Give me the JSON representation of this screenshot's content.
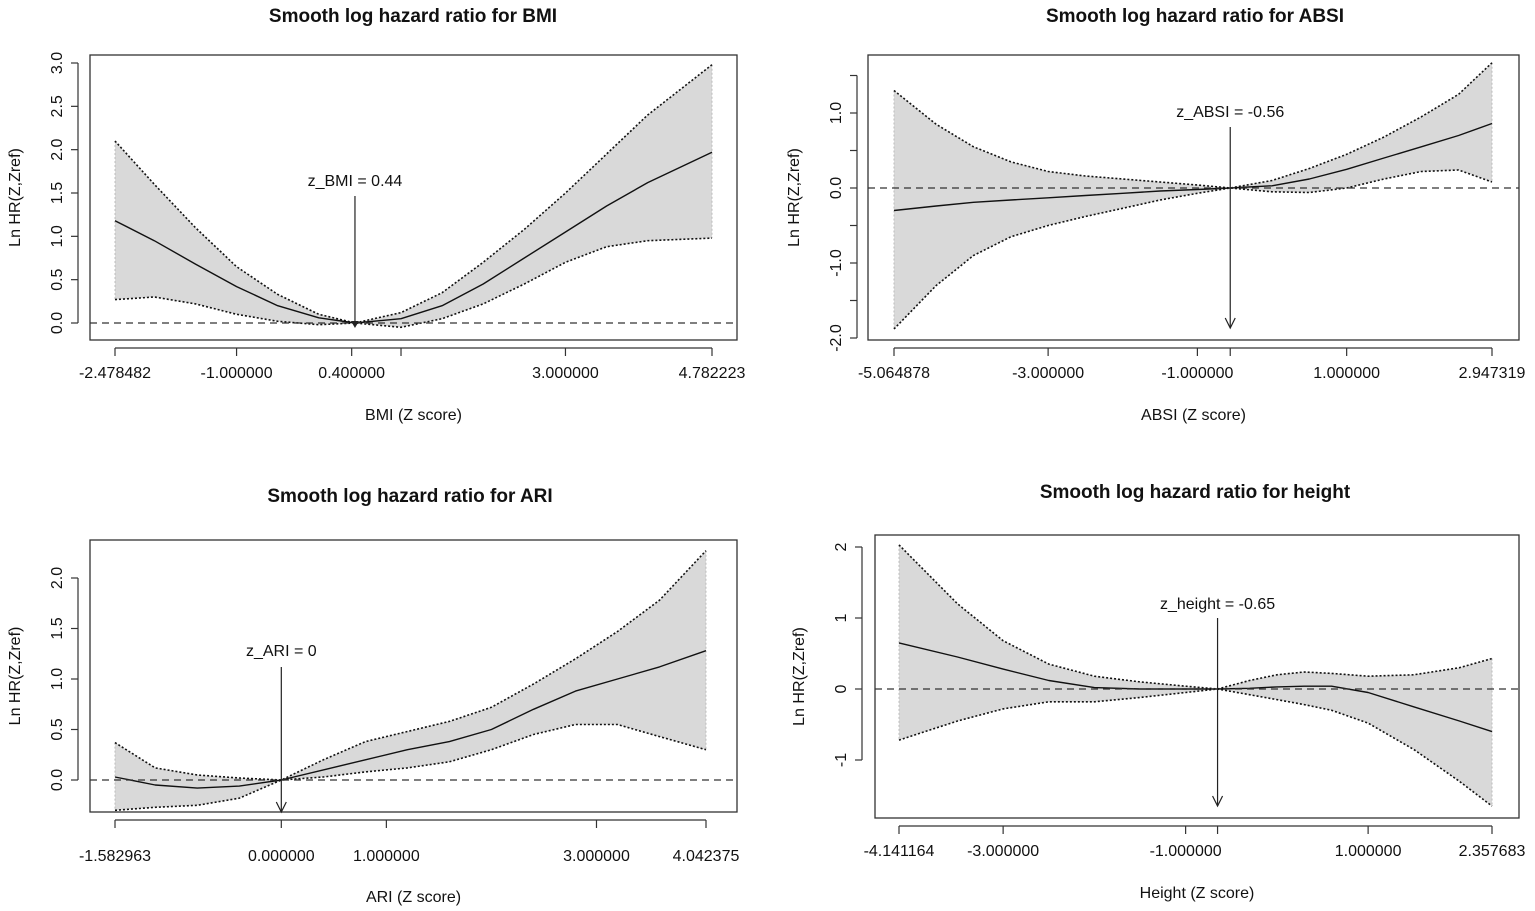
{
  "chart_data": [
    {
      "type": "line",
      "title": "Smooth log hazard ratio for BMI",
      "xlabel": "BMI (Z score)",
      "ylabel": "Ln HR(Z,Zref)",
      "reference_label": "z_BMI = 0.44",
      "reference_x": 0.44,
      "xticks": [
        -2.478482,
        -1.0,
        0.4,
        1.0,
        3.0,
        4.782223
      ],
      "xtick_labels": [
        "-2.478482",
        "-1.000000",
        "0.400000",
        "",
        "3.000000",
        "4.782223"
      ],
      "yticks": [
        0,
        0.5,
        1.0,
        1.5,
        2.0,
        2.5,
        3.0
      ],
      "ytick_labels": [
        "0.0",
        "0.5",
        "1.0",
        "1.5",
        "2.0",
        "2.5",
        "3.0"
      ],
      "x": [
        -2.478,
        -2,
        -1.5,
        -1,
        -0.5,
        0,
        0.44,
        1,
        1.5,
        2,
        2.5,
        3,
        3.5,
        4,
        4.782
      ],
      "series": [
        {
          "name": "fit",
          "values": [
            1.18,
            0.95,
            0.68,
            0.42,
            0.2,
            0.06,
            0,
            0.05,
            0.2,
            0.45,
            0.75,
            1.05,
            1.35,
            1.62,
            1.97
          ]
        },
        {
          "name": "upper",
          "values": [
            2.1,
            1.6,
            1.1,
            0.65,
            0.33,
            0.1,
            0,
            0.12,
            0.35,
            0.7,
            1.08,
            1.5,
            1.95,
            2.4,
            2.98
          ]
        },
        {
          "name": "lower",
          "values": [
            0.27,
            0.3,
            0.22,
            0.1,
            0.02,
            -0.02,
            0,
            -0.05,
            0.05,
            0.22,
            0.45,
            0.7,
            0.88,
            0.95,
            0.98
          ]
        }
      ]
    },
    {
      "type": "line",
      "title": "Smooth log hazard ratio for ABSI",
      "xlabel": "ABSI (Z score)",
      "ylabel": "Ln HR(Z,Zref)",
      "reference_label": "z_ABSI = -0.56",
      "reference_x": -0.56,
      "xticks": [
        -5.064878,
        -3.0,
        -1.0,
        -0.56,
        1.0,
        2.947319
      ],
      "xtick_labels": [
        "-5.064878",
        "-3.000000",
        "-1.000000",
        "",
        "1.000000",
        "2.947319"
      ],
      "yticks": [
        -2.0,
        -1.5,
        -1.0,
        -0.5,
        0,
        0.5,
        1.0,
        1.5
      ],
      "ytick_labels": [
        "-2.0",
        "",
        "-1.0",
        "",
        "0.0",
        "",
        "1.0",
        ""
      ],
      "x": [
        -5.065,
        -4.5,
        -4,
        -3.5,
        -3,
        -2.5,
        -2,
        -1.5,
        -1,
        -0.56,
        0,
        0.5,
        1,
        1.5,
        2,
        2.5,
        2.947
      ],
      "series": [
        {
          "name": "fit",
          "values": [
            -0.3,
            -0.24,
            -0.19,
            -0.16,
            -0.13,
            -0.1,
            -0.07,
            -0.04,
            -0.02,
            0,
            0.03,
            0.12,
            0.25,
            0.4,
            0.55,
            0.7,
            0.86
          ]
        },
        {
          "name": "upper",
          "values": [
            1.3,
            0.85,
            0.55,
            0.35,
            0.22,
            0.16,
            0.12,
            0.08,
            0.04,
            0,
            0.1,
            0.26,
            0.45,
            0.68,
            0.95,
            1.25,
            1.67
          ]
        },
        {
          "name": "lower",
          "values": [
            -1.88,
            -1.3,
            -0.9,
            -0.65,
            -0.5,
            -0.38,
            -0.27,
            -0.16,
            -0.07,
            0,
            -0.05,
            -0.06,
            0.0,
            0.12,
            0.22,
            0.24,
            0.08
          ]
        }
      ]
    },
    {
      "type": "line",
      "title": "Smooth log hazard ratio for ARI",
      "xlabel": "ARI (Z score)",
      "ylabel": "Ln HR(Z,Zref)",
      "reference_label": "z_ARI = 0",
      "reference_x": 0,
      "xticks": [
        -1.582963,
        0.0,
        1.0,
        3.0,
        4.042375
      ],
      "xtick_labels": [
        "-1.582963",
        "0.000000",
        "1.000000",
        "3.000000",
        "4.042375"
      ],
      "yticks": [
        0,
        0.5,
        1.0,
        1.5,
        2.0
      ],
      "ytick_labels": [
        "0.0",
        "0.5",
        "1.0",
        "1.5",
        "2.0"
      ],
      "x": [
        -1.583,
        -1.2,
        -0.8,
        -0.4,
        0,
        0.4,
        0.8,
        1.2,
        1.6,
        2,
        2.4,
        2.8,
        3.2,
        3.6,
        4.042
      ],
      "series": [
        {
          "name": "fit",
          "values": [
            0.03,
            -0.05,
            -0.08,
            -0.06,
            0,
            0.1,
            0.2,
            0.3,
            0.38,
            0.5,
            0.7,
            0.88,
            1.0,
            1.12,
            1.28
          ]
        },
        {
          "name": "upper",
          "values": [
            0.37,
            0.12,
            0.05,
            0.02,
            0,
            0.2,
            0.38,
            0.48,
            0.58,
            0.72,
            0.95,
            1.2,
            1.47,
            1.78,
            2.27
          ]
        },
        {
          "name": "lower",
          "values": [
            -0.3,
            -0.27,
            -0.25,
            -0.18,
            0,
            0.03,
            0.08,
            0.12,
            0.18,
            0.3,
            0.45,
            0.55,
            0.55,
            0.43,
            0.3
          ]
        }
      ]
    },
    {
      "type": "line",
      "title": "Smooth log hazard ratio for height",
      "xlabel": "Height (Z score)",
      "ylabel": "Ln HR(Z,Zref)",
      "reference_label": "z_height = -0.65",
      "reference_x": -0.65,
      "xticks": [
        -4.141164,
        -3.0,
        -1.0,
        -0.65,
        1.0,
        2.357683
      ],
      "xtick_labels": [
        "-4.141164",
        "-3.000000",
        "-1.000000",
        "",
        "1.000000",
        "2.357683"
      ],
      "yticks": [
        -1,
        0,
        1,
        2
      ],
      "ytick_labels": [
        "-1",
        "0",
        "1",
        "2"
      ],
      "x": [
        -4.141,
        -3.5,
        -3,
        -2.5,
        -2,
        -1.5,
        -1,
        -0.65,
        -0.3,
        0,
        0.3,
        0.6,
        1,
        1.5,
        2,
        2.358
      ],
      "series": [
        {
          "name": "fit",
          "values": [
            0.65,
            0.45,
            0.28,
            0.12,
            0.02,
            0,
            0,
            0,
            0.01,
            0.03,
            0.04,
            0.04,
            -0.05,
            -0.25,
            -0.45,
            -0.6
          ]
        },
        {
          "name": "upper",
          "values": [
            2.03,
            1.2,
            0.68,
            0.35,
            0.18,
            0.1,
            0.04,
            0,
            0.12,
            0.2,
            0.24,
            0.22,
            0.18,
            0.2,
            0.3,
            0.43
          ]
        },
        {
          "name": "lower",
          "values": [
            -0.72,
            -0.45,
            -0.28,
            -0.18,
            -0.18,
            -0.12,
            -0.05,
            0,
            -0.08,
            -0.15,
            -0.22,
            -0.3,
            -0.48,
            -0.85,
            -1.3,
            -1.65
          ]
        }
      ]
    }
  ]
}
